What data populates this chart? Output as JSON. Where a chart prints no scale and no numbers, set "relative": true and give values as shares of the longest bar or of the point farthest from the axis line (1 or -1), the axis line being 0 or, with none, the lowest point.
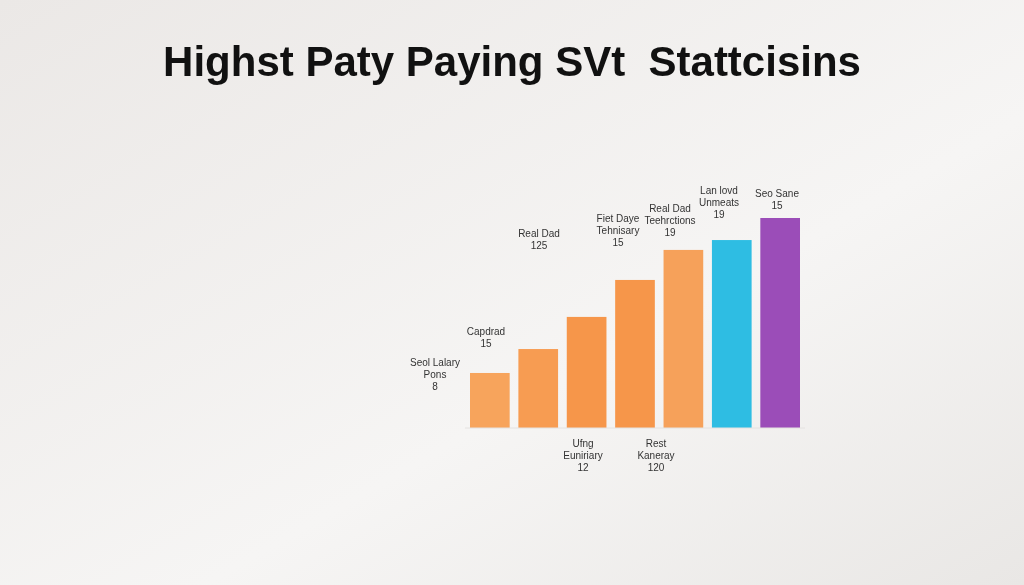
{
  "chart_data": {
    "type": "bar",
    "title": "Highst Paty Paying SVt  Stattcisins",
    "relative": true,
    "categories": [
      null,
      null,
      null,
      null,
      null,
      null,
      null
    ],
    "values": [
      0.262,
      0.376,
      0.529,
      0.705,
      0.848,
      0.895,
      1
    ],
    "colors": [
      "#f7a45c",
      "#f79c52",
      "#f6964a",
      "#f6964a",
      "#f6a15a",
      "#2ebde3",
      "#9b4db8"
    ],
    "annotations": [
      "Seol Lalary\nPons\n8",
      "Capdrad\n15",
      "Real Dad\n125",
      "Fiet Daye\nTehnisary\n15",
      "Real Dad\nTeehrctions\n19",
      "Lan lovd\nUnmeats\n19",
      "Seo Sane\n15",
      "Ufng\nEuniriary\n12",
      "Rest\nKaneray\n120"
    ]
  }
}
